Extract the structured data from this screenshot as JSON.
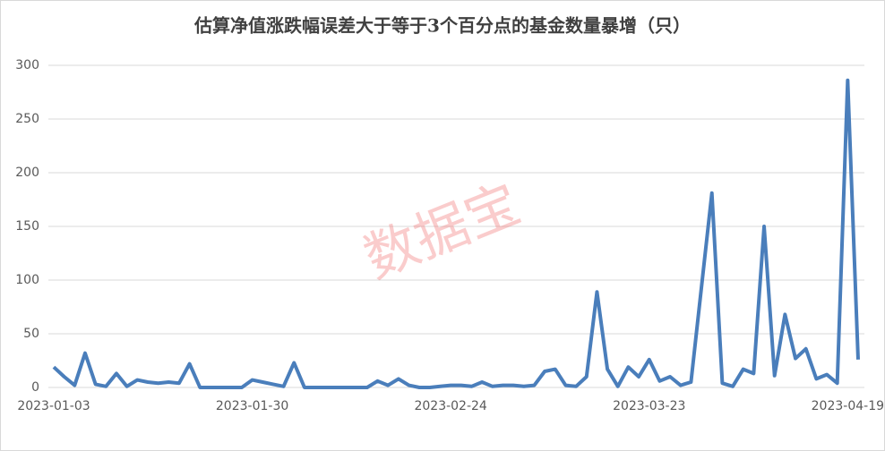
{
  "chart_data": {
    "type": "line",
    "title": "估算净值涨跌幅误差大于等于3个百分点的基金数量暴增（只）",
    "watermark": "数据宝",
    "categories": [
      "2023-01-03",
      null,
      null,
      null,
      null,
      null,
      null,
      null,
      null,
      null,
      null,
      null,
      null,
      null,
      null,
      null,
      null,
      null,
      null,
      "2023-01-30",
      null,
      null,
      null,
      null,
      null,
      null,
      null,
      null,
      null,
      null,
      null,
      null,
      null,
      null,
      null,
      null,
      null,
      null,
      "2023-02-24",
      null,
      null,
      null,
      null,
      null,
      null,
      null,
      null,
      null,
      null,
      null,
      null,
      null,
      null,
      null,
      null,
      null,
      null,
      "2023-03-23",
      null,
      null,
      null,
      null,
      null,
      null,
      null,
      null,
      null,
      null,
      null,
      null,
      null,
      null,
      null,
      null,
      null,
      null,
      "2023-04-19",
      null
    ],
    "values": [
      19,
      10,
      2,
      32,
      3,
      1,
      13,
      1,
      7,
      5,
      4,
      5,
      4,
      22,
      0,
      0,
      0,
      0,
      0,
      7,
      5,
      3,
      1,
      23,
      0,
      0,
      0,
      0,
      0,
      0,
      0,
      6,
      2,
      8,
      2,
      0,
      0,
      1,
      2,
      2,
      1,
      5,
      1,
      2,
      2,
      1,
      2,
      15,
      17,
      2,
      1,
      10,
      89,
      17,
      1,
      19,
      10,
      26,
      6,
      10,
      2,
      5,
      93,
      181,
      4,
      1,
      17,
      13,
      150,
      11,
      68,
      27,
      36,
      8,
      12,
      4,
      286,
      26
    ],
    "color": "#4a7ebb",
    "ylim": [
      0,
      300
    ],
    "yticks": [
      0,
      50,
      100,
      150,
      200,
      250,
      300
    ],
    "grid": true
  }
}
